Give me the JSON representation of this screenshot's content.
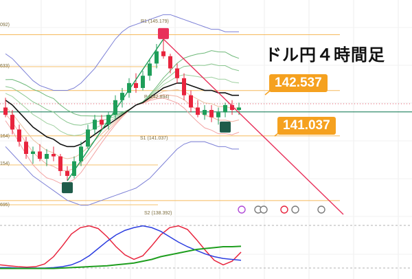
{
  "title": "ドル円４時間足",
  "callouts": {
    "upper": "142.537",
    "lower": "141.037"
  },
  "pivot_labels": {
    "r1": "R1 (145.179)",
    "p": "P (142.894)",
    "s1": "S1 (141.037)",
    "s2": "S2 (138.392)",
    "left_1": "092)",
    "left_2": "633)",
    "left_3": "164)",
    "left_4": "154)",
    "left_5": "695)"
  },
  "colors": {
    "bull": "#1e9e59",
    "bear": "#e8243d",
    "trend_up": "#1e9e59",
    "trend_down": "#e8305a",
    "bollinger": "#7b7fd6",
    "pivot": "#f4b24a",
    "horizontal": "#1a7f5a",
    "macd_red": "#e8243d",
    "macd_blue": "#2b3de0",
    "macd_green": "#1e9e1e",
    "callout": "#f5a11f"
  },
  "chart_data": {
    "type": "candlestick",
    "ylim": [
      137.6,
      146.6
    ],
    "candles": [
      {
        "o": 142.2,
        "h": 142.6,
        "l": 141.8,
        "c": 141.9
      },
      {
        "o": 141.9,
        "h": 142.1,
        "l": 141.1,
        "c": 141.3
      },
      {
        "o": 141.3,
        "h": 141.5,
        "l": 140.6,
        "c": 140.8
      },
      {
        "o": 140.8,
        "h": 141.0,
        "l": 140.1,
        "c": 140.3
      },
      {
        "o": 140.3,
        "h": 140.6,
        "l": 139.9,
        "c": 140.4
      },
      {
        "o": 140.4,
        "h": 140.7,
        "l": 140.0,
        "c": 140.1
      },
      {
        "o": 140.1,
        "h": 140.5,
        "l": 139.8,
        "c": 140.3
      },
      {
        "o": 140.3,
        "h": 140.6,
        "l": 140.0,
        "c": 140.2
      },
      {
        "o": 140.2,
        "h": 140.3,
        "l": 139.4,
        "c": 139.6
      },
      {
        "o": 139.6,
        "h": 139.8,
        "l": 139.2,
        "c": 139.4
      },
      {
        "o": 139.4,
        "h": 140.2,
        "l": 139.3,
        "c": 140.0
      },
      {
        "o": 140.0,
        "h": 140.8,
        "l": 139.8,
        "c": 140.6
      },
      {
        "o": 140.6,
        "h": 141.5,
        "l": 140.5,
        "c": 141.3
      },
      {
        "o": 141.3,
        "h": 141.9,
        "l": 141.1,
        "c": 141.7
      },
      {
        "o": 141.7,
        "h": 141.9,
        "l": 141.3,
        "c": 141.5
      },
      {
        "o": 141.5,
        "h": 142.0,
        "l": 141.3,
        "c": 141.9
      },
      {
        "o": 141.9,
        "h": 142.7,
        "l": 141.7,
        "c": 142.5
      },
      {
        "o": 142.5,
        "h": 143.0,
        "l": 142.2,
        "c": 142.8
      },
      {
        "o": 142.8,
        "h": 143.4,
        "l": 142.6,
        "c": 143.2
      },
      {
        "o": 143.2,
        "h": 143.6,
        "l": 142.8,
        "c": 143.0
      },
      {
        "o": 143.0,
        "h": 143.7,
        "l": 142.9,
        "c": 143.5
      },
      {
        "o": 143.5,
        "h": 144.2,
        "l": 143.3,
        "c": 144.0
      },
      {
        "o": 144.0,
        "h": 144.8,
        "l": 143.8,
        "c": 144.5
      },
      {
        "o": 144.5,
        "h": 145.0,
        "l": 144.2,
        "c": 144.3
      },
      {
        "o": 144.3,
        "h": 144.4,
        "l": 143.6,
        "c": 143.8
      },
      {
        "o": 143.8,
        "h": 144.0,
        "l": 143.2,
        "c": 143.4
      },
      {
        "o": 143.4,
        "h": 143.6,
        "l": 142.5,
        "c": 142.7
      },
      {
        "o": 142.7,
        "h": 142.9,
        "l": 142.0,
        "c": 142.2
      },
      {
        "o": 142.2,
        "h": 142.5,
        "l": 141.8,
        "c": 141.9
      },
      {
        "o": 141.9,
        "h": 142.3,
        "l": 141.7,
        "c": 142.1
      },
      {
        "o": 142.1,
        "h": 142.3,
        "l": 141.6,
        "c": 141.8
      },
      {
        "o": 141.8,
        "h": 142.2,
        "l": 141.5,
        "c": 142.0
      },
      {
        "o": 142.0,
        "h": 142.4,
        "l": 141.8,
        "c": 142.3
      },
      {
        "o": 142.3,
        "h": 142.5,
        "l": 141.9,
        "c": 142.1
      },
      {
        "o": 142.1,
        "h": 142.4,
        "l": 141.9,
        "c": 142.2
      }
    ],
    "moving_average": [
      142.5,
      142.3,
      142.0,
      141.7,
      141.4,
      141.2,
      141.0,
      140.9,
      140.7,
      140.6,
      140.6,
      140.7,
      140.9,
      141.1,
      141.3,
      141.5,
      141.7,
      141.9,
      142.1,
      142.3,
      142.4,
      142.6,
      142.8,
      143.0,
      143.1,
      143.2,
      143.2,
      143.1,
      143.0,
      142.9,
      142.9,
      142.8,
      142.8,
      142.7,
      142.7
    ],
    "bollinger_upper": [
      144.4,
      144.2,
      143.9,
      143.6,
      143.3,
      143.1,
      143.0,
      142.9,
      142.9,
      142.9,
      143.0,
      143.2,
      143.5,
      143.8,
      144.2,
      144.6,
      145.0,
      145.3,
      145.5,
      145.6,
      145.7,
      145.8,
      145.9,
      146.0,
      146.0,
      145.9,
      145.8,
      145.7,
      145.6,
      145.5,
      145.4,
      145.4,
      145.3,
      145.3,
      145.3
    ],
    "bollinger_lower": [
      140.6,
      140.3,
      140.0,
      139.7,
      139.4,
      139.2,
      139.0,
      138.8,
      138.6,
      138.4,
      138.3,
      138.2,
      138.2,
      138.3,
      138.4,
      138.5,
      138.6,
      138.7,
      138.8,
      138.9,
      139.1,
      139.3,
      139.6,
      139.9,
      140.2,
      140.5,
      140.7,
      140.8,
      140.8,
      140.8,
      140.7,
      140.6,
      140.6,
      140.5,
      140.5
    ],
    "pivots": {
      "R1": 145.179,
      "P": 142.894,
      "S1": 141.037,
      "S2": 138.392
    },
    "marked_levels": [
      142.537,
      141.037
    ]
  }
}
